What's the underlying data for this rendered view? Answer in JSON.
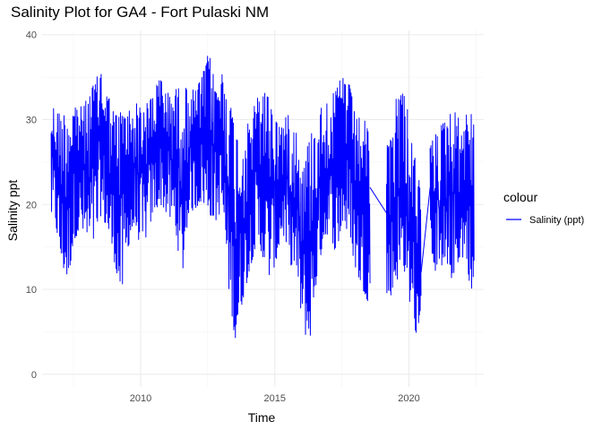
{
  "chart_data": {
    "type": "line",
    "title": "Salinity Plot for GA4 - Fort Pulaski NM",
    "xlabel": "Time",
    "ylabel": "Salinity ppt",
    "x_ticks": [
      "2010",
      "2015",
      "2020"
    ],
    "y_ticks": [
      "0",
      "10",
      "20",
      "30",
      "40"
    ],
    "xlim": [
      "2006-05-01",
      "2022-10-15"
    ],
    "ylim": [
      -1.5,
      40.5
    ],
    "grid": true,
    "legend": {
      "title": "colour",
      "placement": "right",
      "entries": [
        "Salinity (ppt)"
      ]
    },
    "series": [
      {
        "name": "Salinity (ppt)",
        "color": "#0000ff",
        "segments": [
          {
            "start": "2006-09-01",
            "end": "2018-07-20",
            "summary": [
              [
                "2006-09",
                18.5,
                31.5
              ],
              [
                "2006-12",
                13.0,
                30.5
              ],
              [
                "2007-03",
                11.0,
                31.0
              ],
              [
                "2007-06",
                16.0,
                32.0
              ],
              [
                "2007-09",
                17.0,
                31.5
              ],
              [
                "2007-12",
                15.0,
                32.5
              ],
              [
                "2008-03",
                15.5,
                34.5
              ],
              [
                "2008-06",
                19.0,
                36.0
              ],
              [
                "2008-09",
                16.5,
                33.0
              ],
              [
                "2008-12",
                13.0,
                30.5
              ],
              [
                "2009-03",
                9.0,
                31.0
              ],
              [
                "2009-06",
                15.0,
                31.0
              ],
              [
                "2009-09",
                17.5,
                32.0
              ],
              [
                "2009-12",
                14.5,
                31.5
              ],
              [
                "2010-03",
                17.0,
                32.0
              ],
              [
                "2010-06",
                19.5,
                34.0
              ],
              [
                "2010-09",
                20.0,
                35.0
              ],
              [
                "2010-12",
                18.5,
                33.0
              ],
              [
                "2011-03",
                17.5,
                33.5
              ],
              [
                "2011-06",
                11.0,
                34.0
              ],
              [
                "2011-09",
                19.0,
                33.5
              ],
              [
                "2011-12",
                19.5,
                33.5
              ],
              [
                "2012-03",
                20.5,
                35.0
              ],
              [
                "2012-06",
                19.0,
                38.0
              ],
              [
                "2012-09",
                18.0,
                34.0
              ],
              [
                "2012-12",
                19.5,
                35.5
              ],
              [
                "2013-03",
                10.0,
                33.0
              ],
              [
                "2013-06",
                3.5,
                28.5
              ],
              [
                "2013-09",
                8.5,
                27.0
              ],
              [
                "2013-12",
                12.0,
                30.0
              ],
              [
                "2014-03",
                15.0,
                32.0
              ],
              [
                "2014-06",
                14.0,
                34.0
              ],
              [
                "2014-09",
                11.5,
                32.5
              ],
              [
                "2014-12",
                13.0,
                30.0
              ],
              [
                "2015-03",
                17.0,
                29.5
              ],
              [
                "2015-06",
                13.0,
                31.0
              ],
              [
                "2015-09",
                12.5,
                29.0
              ],
              [
                "2015-12",
                5.5,
                24.0
              ],
              [
                "2016-03",
                3.5,
                28.0
              ],
              [
                "2016-06",
                10.5,
                29.5
              ],
              [
                "2016-09",
                15.5,
                32.0
              ],
              [
                "2016-12",
                17.0,
                32.5
              ],
              [
                "2017-03",
                14.0,
                33.5
              ],
              [
                "2017-06",
                18.0,
                35.5
              ],
              [
                "2017-09",
                16.0,
                34.0
              ],
              [
                "2017-12",
                12.0,
                30.0
              ],
              [
                "2018-03",
                10.0,
                30.5
              ],
              [
                "2018-06",
                8.0,
                28.0
              ]
            ]
          },
          {
            "start": "2018-07-20",
            "end": "2019-03-01",
            "from": 22.0,
            "to": 19.0
          },
          {
            "start": "2019-03-01",
            "end": "2019-12-15",
            "summary": [
              [
                "2019-03",
                9.0,
                27.0
              ],
              [
                "2019-06",
                11.0,
                33.0
              ],
              [
                "2019-09",
                12.5,
                33.5
              ],
              [
                "2019-12",
                10.5,
                30.5
              ]
            ]
          },
          {
            "start": "2019-12-15",
            "end": "2020-06-15",
            "summary": [
              [
                "2019-12",
                8.0,
                28.0
              ],
              [
                "2020-03",
                4.5,
                25.0
              ],
              [
                "2020-06",
                10.0,
                19.0
              ]
            ]
          },
          {
            "start": "2020-06-15",
            "end": "2020-10-15",
            "from": 12.0,
            "to": 22.0
          },
          {
            "start": "2020-10-15",
            "end": "2022-06-10",
            "summary": [
              [
                "2020-10",
                14.0,
                27.5
              ],
              [
                "2021-01",
                10.0,
                29.0
              ],
              [
                "2021-04",
                10.5,
                30.0
              ],
              [
                "2021-07",
                11.5,
                31.5
              ],
              [
                "2021-10",
                13.5,
                30.0
              ],
              [
                "2022-01",
                14.0,
                30.5
              ],
              [
                "2022-04",
                8.0,
                31.5
              ]
            ]
          }
        ]
      }
    ]
  }
}
